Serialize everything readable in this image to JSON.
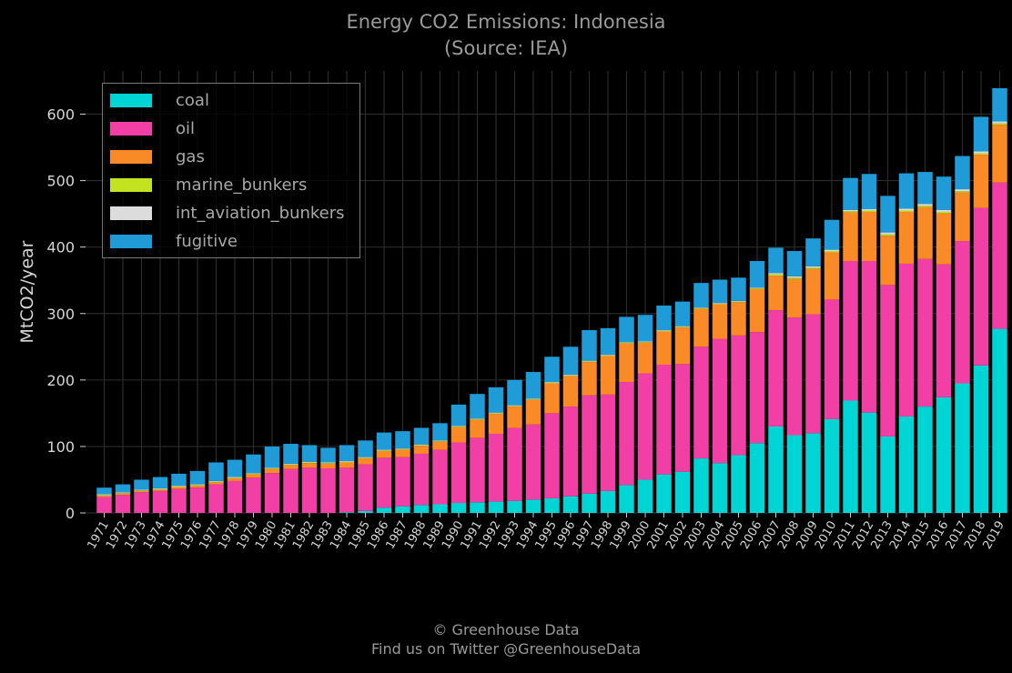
{
  "header": {
    "title": "Energy CO2 Emissions: Indonesia",
    "subtitle": "(Source: IEA)"
  },
  "footer": {
    "line1": "© Greenhouse Data",
    "line2": "Find us on Twitter @GreenhouseData"
  },
  "colors": {
    "background": "#000000",
    "grid": "#2b2b2b",
    "coal": "#00d5d5",
    "oil": "#f23fa5",
    "gas": "#f98a25",
    "marine_bunkers": "#c3e21f",
    "int_aviation_bunkers": "#dcdcdc",
    "fugitive": "#1f9cd8"
  },
  "chart_data": {
    "type": "bar",
    "stacked": true,
    "title": "Energy CO2 Emissions: Indonesia",
    "subtitle": "(Source: IEA)",
    "xlabel": "",
    "ylabel": "MtCO2/year",
    "ylim": [
      0,
      665
    ],
    "yticks": [
      0,
      100,
      200,
      300,
      400,
      500,
      600
    ],
    "grid": true,
    "legend_position": "top-left",
    "categories": [
      "1971",
      "1972",
      "1973",
      "1974",
      "1975",
      "1976",
      "1977",
      "1978",
      "1979",
      "1980",
      "1981",
      "1982",
      "1983",
      "1984",
      "1985",
      "1986",
      "1987",
      "1988",
      "1989",
      "1990",
      "1991",
      "1992",
      "1993",
      "1994",
      "1995",
      "1996",
      "1997",
      "1998",
      "1999",
      "2000",
      "2001",
      "2002",
      "2003",
      "2004",
      "2005",
      "2006",
      "2007",
      "2008",
      "2009",
      "2010",
      "2011",
      "2012",
      "2013",
      "2014",
      "2015",
      "2016",
      "2017",
      "2018",
      "2019"
    ],
    "series": [
      {
        "name": "coal",
        "color": "#00d5d5",
        "values": [
          0,
          0,
          0,
          0,
          0,
          0,
          0,
          0,
          0,
          0,
          0,
          0,
          0,
          1,
          3,
          8,
          10,
          12,
          13,
          15,
          16,
          17,
          18,
          20,
          22,
          25,
          29,
          33,
          42,
          50,
          58,
          62,
          82,
          75,
          87,
          105,
          130,
          117,
          120,
          141,
          169,
          151,
          115,
          145,
          160,
          174,
          195,
          222,
          277
        ]
      },
      {
        "name": "oil",
        "color": "#f23fa5",
        "values": [
          24,
          27,
          31,
          33,
          36,
          38,
          43,
          48,
          53,
          60,
          66,
          68,
          67,
          67,
          70,
          75,
          74,
          77,
          82,
          91,
          97,
          102,
          110,
          113,
          128,
          135,
          148,
          145,
          155,
          160,
          165,
          162,
          168,
          187,
          180,
          167,
          175,
          177,
          179,
          180,
          210,
          228,
          228,
          230,
          222,
          200,
          214,
          237,
          220
        ]
      },
      {
        "name": "gas",
        "color": "#f98a25",
        "values": [
          2,
          2,
          2,
          2,
          3,
          3,
          3,
          4,
          5,
          6,
          6,
          7,
          7,
          8,
          9,
          10,
          11,
          12,
          12,
          23,
          27,
          30,
          32,
          37,
          45,
          46,
          50,
          58,
          58,
          46,
          50,
          55,
          57,
          52,
          50,
          65,
          52,
          58,
          68,
          71,
          73,
          74,
          74,
          78,
          78,
          77,
          73,
          80,
          87
        ]
      },
      {
        "name": "marine_bunkers",
        "color": "#c3e21f",
        "values": [
          1,
          1,
          1,
          1,
          1,
          1,
          1,
          1,
          1,
          1,
          1,
          1,
          1,
          1,
          1,
          1,
          1,
          1,
          1,
          1,
          1,
          1,
          1,
          1,
          1,
          1,
          1,
          1,
          1,
          1,
          1,
          1,
          1,
          1,
          1,
          1,
          2,
          2,
          2,
          2,
          2,
          2,
          2,
          2,
          2,
          2,
          2,
          2,
          2
        ]
      },
      {
        "name": "int_aviation_bunkers",
        "color": "#dcdcdc",
        "values": [
          1,
          1,
          1,
          1,
          1,
          1,
          1,
          1,
          1,
          1,
          1,
          1,
          1,
          1,
          1,
          1,
          1,
          1,
          1,
          1,
          1,
          1,
          1,
          1,
          1,
          1,
          1,
          1,
          1,
          1,
          1,
          1,
          1,
          1,
          1,
          1,
          2,
          2,
          2,
          2,
          2,
          2,
          3,
          3,
          3,
          3,
          3,
          3,
          3
        ]
      },
      {
        "name": "fugitive",
        "color": "#1f9cd8",
        "values": [
          10,
          12,
          15,
          17,
          18,
          20,
          28,
          26,
          28,
          32,
          30,
          25,
          22,
          24,
          25,
          26,
          26,
          25,
          26,
          32,
          37,
          38,
          38,
          40,
          38,
          42,
          46,
          40,
          38,
          40,
          37,
          37,
          37,
          35,
          35,
          40,
          38,
          38,
          42,
          45,
          48,
          53,
          55,
          53,
          48,
          50,
          50,
          52,
          50
        ]
      }
    ]
  }
}
